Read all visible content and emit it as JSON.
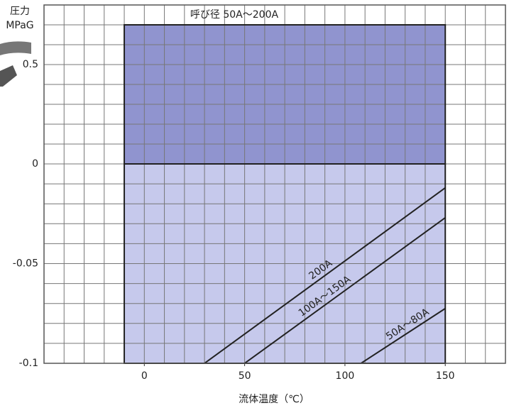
{
  "chart_data": [
    {
      "type": "region",
      "title": "呼び径 50A～200A",
      "y_label": [
        "圧力",
        "MPaG"
      ],
      "xlim": [
        -50,
        180
      ],
      "ylim": [
        0,
        0.8
      ],
      "yticks": [
        0.5
      ],
      "yminor": [
        0.1,
        0.2,
        0.3,
        0.4,
        0.5,
        0.6,
        0.7,
        0.8
      ],
      "region": {
        "x": [
          -10,
          150
        ],
        "y": [
          0,
          0.7
        ]
      },
      "color": "#9094cf",
      "grid": true
    },
    {
      "type": "line",
      "x_label": "流体温度（℃）",
      "xlim": [
        -50,
        180
      ],
      "ylim": [
        -0.1,
        0
      ],
      "xticks": [
        0,
        50,
        100,
        150
      ],
      "yticks": [
        -0.1,
        -0.05,
        0
      ],
      "xminor": [
        -40,
        -30,
        -20,
        -10,
        0,
        10,
        20,
        30,
        40,
        50,
        60,
        70,
        80,
        90,
        100,
        110,
        120,
        130,
        140,
        150,
        160,
        170
      ],
      "yminor": [
        -0.09,
        -0.08,
        -0.07,
        -0.06,
        -0.05,
        -0.04,
        -0.03,
        -0.02,
        -0.01
      ],
      "region": {
        "x": [
          -10,
          150
        ],
        "y": [
          -0.1,
          0
        ]
      },
      "color": "#c6c9ec",
      "grid": true,
      "series": [
        {
          "name": "200A",
          "color": "#222222",
          "x": [
            30,
            150
          ],
          "values": [
            -0.1,
            -0.012
          ]
        },
        {
          "name": "100A～150A",
          "color": "#222222",
          "x": [
            50,
            150
          ],
          "values": [
            -0.1,
            -0.027
          ]
        },
        {
          "name": "50A～80A",
          "color": "#222222",
          "x": [
            108,
            150
          ],
          "values": [
            -0.1,
            -0.0725
          ]
        }
      ]
    }
  ]
}
